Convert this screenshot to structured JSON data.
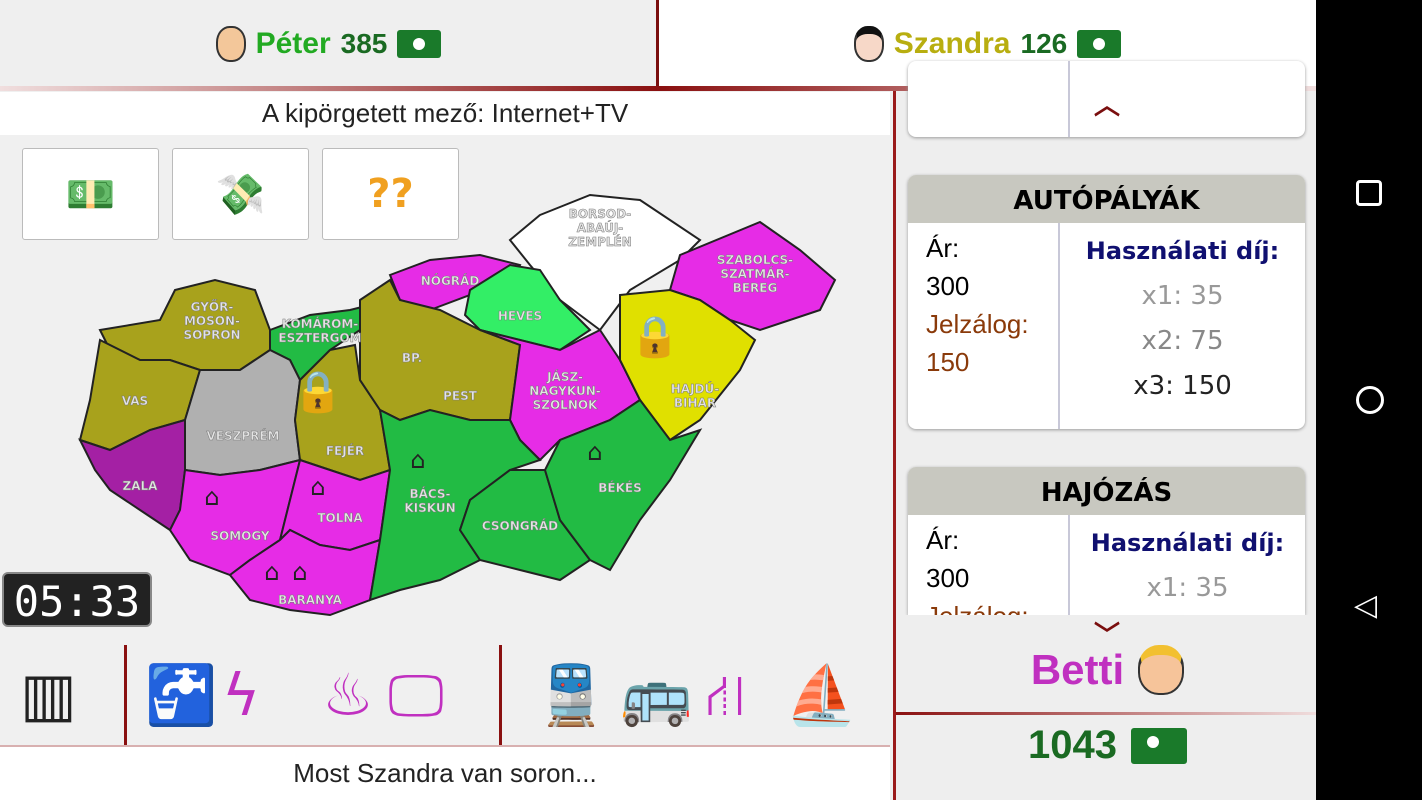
{
  "players": [
    {
      "name": "Péter",
      "money": "385",
      "color": "#22aa22"
    },
    {
      "name": "Szandra",
      "money": "126",
      "color": "#b8ae10"
    },
    {
      "name": "Betti",
      "money": "1043",
      "color": "#c030c0"
    }
  ],
  "heading": "A kipörgetett mező: Internet+TV",
  "actions": [
    {
      "icon": "pay-money-icon"
    },
    {
      "icon": "receive-money-icon"
    },
    {
      "icon": "question-marks-icon",
      "label": "??"
    }
  ],
  "timer": "05:33",
  "map": {
    "counties": [
      "BORSOD-ABAÚJ-ZEMPLÉN",
      "NÓGRÁD",
      "HEVES",
      "SZABOLCS-SZATMÁR-BEREG",
      "GYŐR-MOSON-SOPRON",
      "KOMÁROM-ESZTERGOM",
      "VAS",
      "VESZPRÉM",
      "FEJÉR",
      "PEST",
      "BP.",
      "JÁSZ-NAGYKUN-SZOLNOK",
      "HAJDÚ-BIHAR",
      "ZALA",
      "SOMOGY",
      "TOLNA",
      "BARANYA",
      "BÁCS-KISKUN",
      "CSONGRÁD",
      "BÉKÉS"
    ],
    "colors": {
      "olive": "#a8a21c",
      "magenta": "#e62ce6",
      "green": "#22bb44",
      "lightgreen": "#33ee66",
      "gray": "#b0b0b0",
      "yellow": "#e0e000",
      "purple": "#a420a4",
      "white": "#ffffff"
    }
  },
  "status": "Most Szandra van soron...",
  "cards": [
    {
      "title": "AUTÓPÁLYÁK",
      "price_label": "Ár:",
      "price": "300",
      "mortgage_label": "Jelzálog:",
      "mortgage": "150",
      "rent_label": "Használati díj:",
      "rents": [
        "x1: 35",
        "x2: 75",
        "x3: 150"
      ]
    },
    {
      "title": "HAJÓZÁS",
      "price_label": "Ár:",
      "price": "300",
      "mortgage_label": "Jelzálog:",
      "rent_label": "Használati díj:",
      "rents": [
        "x1: 35"
      ]
    }
  ]
}
